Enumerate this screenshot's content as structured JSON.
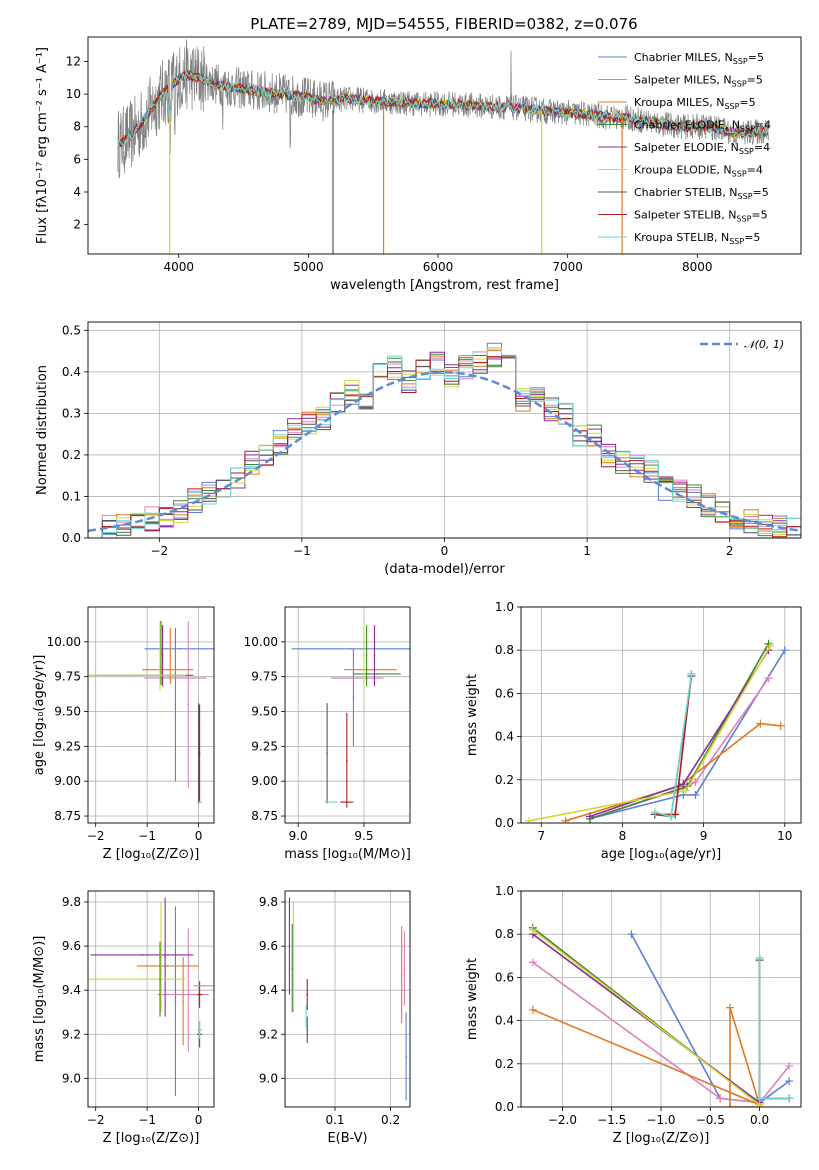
{
  "figure_title": "PLATE=2789, MJD=54555, FIBERID=0382, z=0.076",
  "colors": {
    "Chabrier MILES": "#5b7fd6",
    "Salpeter MILES": "#e07fbf",
    "Kroupa MILES": "#e07a22",
    "Chabrier ELODIE": "#3a8a3a",
    "Salpeter ELODIE": "#8a2c9a",
    "Kroupa ELODIE": "#d6d633",
    "Chabrier STELIB": "#555555",
    "Salpeter STELIB": "#b01c1c",
    "Kroupa STELIB": "#6ed6d6"
  },
  "chart_data": [
    {
      "id": "spectrum",
      "type": "line",
      "title": "PLATE=2789, MJD=54555, FIBERID=0382, z=0.076",
      "xlabel": "wavelength [Angstrom, rest frame]",
      "ylabel": "Flux [fλ10⁻¹⁷ erg cm⁻² s⁻¹ A⁻¹]",
      "xlim": [
        3300,
        8800
      ],
      "ylim": [
        0.2,
        13.5
      ],
      "xticks": [
        4000,
        5000,
        6000,
        7000,
        8000
      ],
      "yticks": [
        2,
        4,
        6,
        8,
        10,
        12
      ],
      "grid": false,
      "legend_position": "top-right",
      "legend": [
        "Chabrier MILES, N_SSP=5",
        "Salpeter MILES, N_SSP=5",
        "Kroupa MILES, N_SSP=5",
        "Chabrier ELODIE, N_SSP=4",
        "Salpeter ELODIE, N_SSP=4",
        "Kroupa ELODIE, N_SSP=4",
        "Chabrier STELIB, N_SSP=5",
        "Salpeter STELIB, N_SSP=5",
        "Kroupa STELIB, N_SSP=5"
      ],
      "data_continuum": {
        "x": [
          3550,
          3650,
          3750,
          3850,
          3950,
          4050,
          4150,
          4300,
          4500,
          4700,
          4900,
          5100,
          5300,
          5500,
          5700,
          5900,
          6100,
          6300,
          6500,
          6700,
          6900,
          7100,
          7300,
          7500,
          7700,
          7900,
          8100,
          8300,
          8500
        ],
        "y": [
          7.0,
          7.6,
          8.6,
          9.8,
          10.6,
          11.2,
          11.0,
          10.6,
          10.3,
          10.1,
          9.9,
          9.6,
          9.7,
          9.6,
          9.5,
          9.4,
          9.4,
          9.3,
          9.2,
          9.1,
          8.9,
          8.8,
          8.6,
          8.5,
          8.2,
          8.0,
          8.0,
          7.6,
          7.7
        ]
      }
    },
    {
      "id": "residuals",
      "type": "line",
      "xlabel": "(data-model)/error",
      "ylabel": "Normed distribution",
      "xlim": [
        -2.5,
        2.5
      ],
      "ylim": [
        0,
        0.52
      ],
      "xticks": [
        -2,
        -1,
        0,
        1,
        2
      ],
      "yticks": [
        0.0,
        0.1,
        0.2,
        0.3,
        0.4,
        0.5
      ],
      "grid": true,
      "legend_position": "top-right",
      "legend": [
        "𝒩(0, 1)"
      ],
      "bin_width": 0.1,
      "mean_hist": {
        "x": [
          -2.45,
          -2.35,
          -2.25,
          -2.15,
          -2.05,
          -1.95,
          -1.85,
          -1.75,
          -1.65,
          -1.55,
          -1.45,
          -1.35,
          -1.25,
          -1.15,
          -1.05,
          -0.95,
          -0.85,
          -0.75,
          -0.65,
          -0.55,
          -0.45,
          -0.35,
          -0.25,
          -0.15,
          -0.05,
          0.05,
          0.15,
          0.25,
          0.35,
          0.45,
          0.55,
          0.65,
          0.75,
          0.85,
          0.95,
          1.05,
          1.15,
          1.25,
          1.35,
          1.45,
          1.55,
          1.65,
          1.75,
          1.85,
          1.95,
          2.05,
          2.15,
          2.25,
          2.35,
          2.45
        ],
        "y": [
          0.02,
          0.025,
          0.03,
          0.04,
          0.045,
          0.05,
          0.065,
          0.09,
          0.11,
          0.12,
          0.15,
          0.18,
          0.2,
          0.23,
          0.26,
          0.28,
          0.29,
          0.33,
          0.35,
          0.33,
          0.39,
          0.41,
          0.38,
          0.4,
          0.42,
          0.39,
          0.41,
          0.42,
          0.44,
          0.45,
          0.33,
          0.35,
          0.31,
          0.3,
          0.25,
          0.25,
          0.2,
          0.18,
          0.17,
          0.16,
          0.12,
          0.11,
          0.1,
          0.08,
          0.065,
          0.045,
          0.04,
          0.03,
          0.025,
          0.02
        ]
      }
    },
    {
      "id": "age-vs-z",
      "type": "scatter",
      "xlabel": "Z [log₁₀(Z/Z⊙)]",
      "ylabel": "age [log₁₀(age/yr)]",
      "xlim": [
        -2.15,
        0.3
      ],
      "ylim": [
        8.7,
        10.25
      ],
      "xticks": [
        -2,
        -1,
        0
      ],
      "yticks": [
        8.75,
        9.0,
        9.25,
        9.5,
        9.75,
        10.0
      ],
      "grid": true,
      "points": [
        {
          "model": "Chabrier MILES",
          "x": -0.35,
          "y": 9.95,
          "xerr": 0.7,
          "yerr": 0.0
        },
        {
          "model": "Chabrier MILES",
          "x": -0.45,
          "y": 9.55,
          "xerr": 0.0,
          "yerr": 0.55
        },
        {
          "model": "Salpeter MILES",
          "x": -0.2,
          "y": 9.55,
          "xerr": 0.0,
          "yerr": 0.6
        },
        {
          "model": "Salpeter MILES",
          "x": -0.45,
          "y": 9.74,
          "xerr": 0.6,
          "yerr": 0.0
        },
        {
          "model": "Kroupa MILES",
          "x": -0.6,
          "y": 9.8,
          "xerr": 0.5,
          "yerr": 0.0
        },
        {
          "model": "Kroupa MILES",
          "x": -0.55,
          "y": 9.9,
          "xerr": 0.0,
          "yerr": 0.2
        },
        {
          "model": "Chabrier ELODIE",
          "x": -1.1,
          "y": 9.76,
          "xerr": 1.0,
          "yerr": 0.0
        },
        {
          "model": "Chabrier ELODIE",
          "x": -0.73,
          "y": 9.92,
          "xerr": 0.0,
          "yerr": 0.23
        },
        {
          "model": "Salpeter ELODIE",
          "x": -0.7,
          "y": 9.9,
          "xerr": 0.0,
          "yerr": 0.22
        },
        {
          "model": "Kroupa ELODIE",
          "x": -1.2,
          "y": 9.76,
          "xerr": 0.95,
          "yerr": 0.0
        },
        {
          "model": "Kroupa ELODIE",
          "x": -0.75,
          "y": 9.9,
          "xerr": 0.0,
          "yerr": 0.25
        },
        {
          "model": "Chabrier STELIB",
          "x": 0.0,
          "y": 9.2,
          "xerr": 0.0,
          "yerr": 0.36
        },
        {
          "model": "Salpeter STELIB",
          "x": 0.02,
          "y": 9.2,
          "xerr": 0.0,
          "yerr": 0.35
        },
        {
          "model": "Kroupa STELIB",
          "x": 0.02,
          "y": 8.85,
          "xerr": 0.05,
          "yerr": 0.0
        }
      ]
    },
    {
      "id": "age-vs-mass",
      "type": "scatter",
      "xlabel": "mass [log₁₀(M/M⊙)]",
      "ylabel": "",
      "xlim": [
        8.9,
        9.85
      ],
      "ylim": [
        8.7,
        10.25
      ],
      "xticks": [
        9.0,
        9.5
      ],
      "yticks": [
        8.75,
        9.0,
        9.25,
        9.5,
        9.75,
        10.0
      ],
      "grid": true,
      "points": [
        {
          "model": "Chabrier MILES",
          "x": 9.4,
          "y": 9.95,
          "xerr": 0.45,
          "yerr": 0.0
        },
        {
          "model": "Chabrier MILES",
          "x": 9.42,
          "y": 9.6,
          "xerr": 0.0,
          "yerr": 0.35
        },
        {
          "model": "Salpeter MILES",
          "x": 9.45,
          "y": 9.74,
          "xerr": 0.2,
          "yerr": 0.0
        },
        {
          "model": "Kroupa MILES",
          "x": 9.55,
          "y": 9.8,
          "xerr": 0.2,
          "yerr": 0.0
        },
        {
          "model": "Chabrier ELODIE",
          "x": 9.6,
          "y": 9.77,
          "xerr": 0.18,
          "yerr": 0.0
        },
        {
          "model": "Chabrier ELODIE",
          "x": 9.52,
          "y": 9.9,
          "xerr": 0.0,
          "yerr": 0.22
        },
        {
          "model": "Salpeter ELODIE",
          "x": 9.58,
          "y": 9.9,
          "xerr": 0.0,
          "yerr": 0.22
        },
        {
          "model": "Kroupa ELODIE",
          "x": 9.5,
          "y": 9.9,
          "xerr": 0.0,
          "yerr": 0.23
        },
        {
          "model": "Chabrier STELIB",
          "x": 9.22,
          "y": 9.2,
          "xerr": 0.0,
          "yerr": 0.36
        },
        {
          "model": "Salpeter STELIB",
          "x": 9.37,
          "y": 9.15,
          "xerr": 0.0,
          "yerr": 0.34
        },
        {
          "model": "Salpeter STELIB",
          "x": 9.37,
          "y": 8.85,
          "xerr": 0.05,
          "yerr": 0.0
        },
        {
          "model": "Kroupa STELIB",
          "x": 9.25,
          "y": 8.85,
          "xerr": 0.05,
          "yerr": 0.0
        }
      ]
    },
    {
      "id": "weight-vs-age",
      "type": "line",
      "xlabel": "age [log₁₀(age/yr)]",
      "ylabel": "mass weight",
      "xlim": [
        6.75,
        10.2
      ],
      "ylim": [
        0.0,
        1.0
      ],
      "xticks": [
        7,
        8,
        9,
        10
      ],
      "yticks": [
        0.0,
        0.2,
        0.4,
        0.6,
        0.8,
        1.0
      ],
      "grid": true,
      "series": [
        {
          "model": "Chabrier MILES",
          "x": [
            7.6,
            8.75,
            8.9,
            10.0
          ],
          "y": [
            0.02,
            0.13,
            0.13,
            0.8
          ]
        },
        {
          "model": "Salpeter MILES",
          "x": [
            7.6,
            8.75,
            8.9,
            9.8
          ],
          "y": [
            0.02,
            0.16,
            0.19,
            0.67
          ]
        },
        {
          "model": "Kroupa MILES",
          "x": [
            7.3,
            8.7,
            9.7,
            9.95
          ],
          "y": [
            0.01,
            0.17,
            0.46,
            0.45
          ]
        },
        {
          "model": "Chabrier ELODIE",
          "x": [
            7.6,
            8.8,
            9.8
          ],
          "y": [
            0.02,
            0.17,
            0.83
          ]
        },
        {
          "model": "Salpeter ELODIE",
          "x": [
            7.6,
            8.75,
            9.8
          ],
          "y": [
            0.03,
            0.18,
            0.8
          ]
        },
        {
          "model": "Kroupa ELODIE",
          "x": [
            6.85,
            8.78,
            9.82
          ],
          "y": [
            0.01,
            0.15,
            0.82
          ]
        },
        {
          "model": "Chabrier STELIB",
          "x": [
            8.4,
            8.6,
            8.85
          ],
          "y": [
            0.04,
            0.03,
            0.68
          ]
        },
        {
          "model": "Salpeter STELIB",
          "x": [
            8.4,
            8.65,
            8.85
          ],
          "y": [
            0.04,
            0.04,
            0.69
          ]
        },
        {
          "model": "Kroupa STELIB",
          "x": [
            8.4,
            8.6,
            8.85
          ],
          "y": [
            0.05,
            0.03,
            0.69
          ]
        }
      ]
    },
    {
      "id": "mass-vs-z",
      "type": "scatter",
      "xlabel": "Z [log₁₀(Z/Z⊙)]",
      "ylabel": "mass [log₁₀(M/M⊙)]",
      "xlim": [
        -2.15,
        0.3
      ],
      "ylim": [
        8.87,
        9.85
      ],
      "xticks": [
        -2,
        -1,
        0
      ],
      "yticks": [
        9.0,
        9.2,
        9.4,
        9.6,
        9.8
      ],
      "grid": true,
      "points": [
        {
          "model": "Chabrier MILES",
          "x": -0.45,
          "y": 9.35,
          "xerr": 0.0,
          "yerr": 0.43
        },
        {
          "model": "Salpeter MILES",
          "x": -0.2,
          "y": 9.4,
          "xerr": 0.0,
          "yerr": 0.28
        },
        {
          "model": "Salpeter MILES",
          "x": -0.3,
          "y": 9.38,
          "xerr": 0.5,
          "yerr": 0.0
        },
        {
          "model": "Kroupa MILES",
          "x": -0.6,
          "y": 9.51,
          "xerr": 0.6,
          "yerr": 0.0
        },
        {
          "model": "Kroupa MILES",
          "x": -0.3,
          "y": 9.35,
          "xerr": 0.0,
          "yerr": 0.2
        },
        {
          "model": "Salpeter ELODIE",
          "x": -1.1,
          "y": 9.56,
          "xerr": 1.0,
          "yerr": 0.0
        },
        {
          "model": "Salpeter ELODIE",
          "x": -0.65,
          "y": 9.55,
          "xerr": 0.0,
          "yerr": 0.27
        },
        {
          "model": "Kroupa ELODIE",
          "x": -1.2,
          "y": 9.45,
          "xerr": 0.95,
          "yerr": 0.0
        },
        {
          "model": "Kroupa ELODIE",
          "x": -0.73,
          "y": 9.55,
          "xerr": 0.0,
          "yerr": 0.25
        },
        {
          "model": "Chabrier ELODIE",
          "x": -0.75,
          "y": 9.45,
          "xerr": 0.0,
          "yerr": 0.17
        },
        {
          "model": "Chabrier STELIB",
          "x": 0.02,
          "y": 9.2,
          "xerr": 0.05,
          "yerr": 0.06
        },
        {
          "model": "Salpeter STELIB",
          "x": 0.02,
          "y": 9.38,
          "xerr": 0.05,
          "yerr": 0.06
        },
        {
          "model": "Kroupa STELIB",
          "x": 0.02,
          "y": 9.22,
          "xerr": 0.05,
          "yerr": 0.04
        },
        {
          "model": "Salpeter MILES",
          "x": 0.1,
          "y": 9.42,
          "xerr": 0.2,
          "yerr": 0.0
        }
      ]
    },
    {
      "id": "mass-vs-ebv",
      "type": "scatter",
      "xlabel": "E(B-V)",
      "ylabel": "",
      "xlim": [
        0.01,
        0.235
      ],
      "ylim": [
        8.87,
        9.85
      ],
      "xticks": [
        0.1,
        0.2
      ],
      "yticks": [
        9.0,
        9.2,
        9.4,
        9.6,
        9.8
      ],
      "grid": true,
      "points": [
        {
          "model": "Salpeter ELODIE",
          "x": 0.018,
          "y": 9.6,
          "xerr": 0.0,
          "yerr": 0.22
        },
        {
          "model": "Kroupa ELODIE",
          "x": 0.025,
          "y": 9.55,
          "xerr": 0.0,
          "yerr": 0.25
        },
        {
          "model": "Chabrier ELODIE",
          "x": 0.023,
          "y": 9.5,
          "xerr": 0.0,
          "yerr": 0.2
        },
        {
          "model": "Chabrier STELIB",
          "x": 0.05,
          "y": 9.22,
          "xerr": 0.0,
          "yerr": 0.06
        },
        {
          "model": "Salpeter STELIB",
          "x": 0.05,
          "y": 9.38,
          "xerr": 0.0,
          "yerr": 0.07
        },
        {
          "model": "Kroupa STELIB",
          "x": 0.048,
          "y": 9.28,
          "xerr": 0.0,
          "yerr": 0.05
        },
        {
          "model": "Kroupa MILES",
          "x": 0.22,
          "y": 9.47,
          "xerr": 0.0,
          "yerr": 0.22
        },
        {
          "model": "Salpeter MILES",
          "x": 0.225,
          "y": 9.5,
          "xerr": 0.0,
          "yerr": 0.17
        },
        {
          "model": "Chabrier MILES",
          "x": 0.228,
          "y": 9.1,
          "xerr": 0.0,
          "yerr": 0.2
        }
      ]
    },
    {
      "id": "weight-vs-z",
      "type": "line",
      "xlabel": "Z [log₁₀(Z/Z⊙)]",
      "ylabel": "mass weight",
      "xlim": [
        -2.42,
        0.42
      ],
      "ylim": [
        0.0,
        1.0
      ],
      "xticks": [
        -2.0,
        -1.5,
        -1.0,
        -0.5,
        0.0
      ],
      "yticks": [
        0.0,
        0.2,
        0.4,
        0.6,
        0.8,
        1.0
      ],
      "grid": true,
      "series": [
        {
          "model": "Chabrier MILES",
          "x": [
            -1.3,
            -0.4,
            0.0,
            0.3
          ],
          "y": [
            0.8,
            0.04,
            0.02,
            0.12
          ]
        },
        {
          "model": "Salpeter MILES",
          "x": [
            -2.3,
            -0.4,
            0.0,
            0.3
          ],
          "y": [
            0.67,
            0.04,
            0.02,
            0.19
          ]
        },
        {
          "model": "Kroupa MILES",
          "x": [
            -2.3,
            0.0,
            -0.3,
            -0.3,
            0.0
          ],
          "y": [
            0.45,
            0.01,
            0.46,
            0.0,
            0.0
          ]
        },
        {
          "model": "Chabrier ELODIE",
          "x": [
            -2.3,
            0.0
          ],
          "y": [
            0.83,
            0.01
          ]
        },
        {
          "model": "Salpeter ELODIE",
          "x": [
            -2.3,
            0.0
          ],
          "y": [
            0.8,
            0.02
          ]
        },
        {
          "model": "Kroupa ELODIE",
          "x": [
            -2.3,
            0.0
          ],
          "y": [
            0.82,
            0.01
          ]
        },
        {
          "model": "Chabrier STELIB",
          "x": [
            0.0,
            0.0,
            0.3
          ],
          "y": [
            0.68,
            0.04,
            0.04
          ]
        },
        {
          "model": "Salpeter STELIB",
          "x": [
            0.0,
            0.0,
            0.3
          ],
          "y": [
            0.69,
            0.04,
            0.04
          ]
        },
        {
          "model": "Kroupa STELIB",
          "x": [
            0.0,
            0.0,
            0.3
          ],
          "y": [
            0.69,
            0.04,
            0.04
          ]
        }
      ]
    }
  ]
}
